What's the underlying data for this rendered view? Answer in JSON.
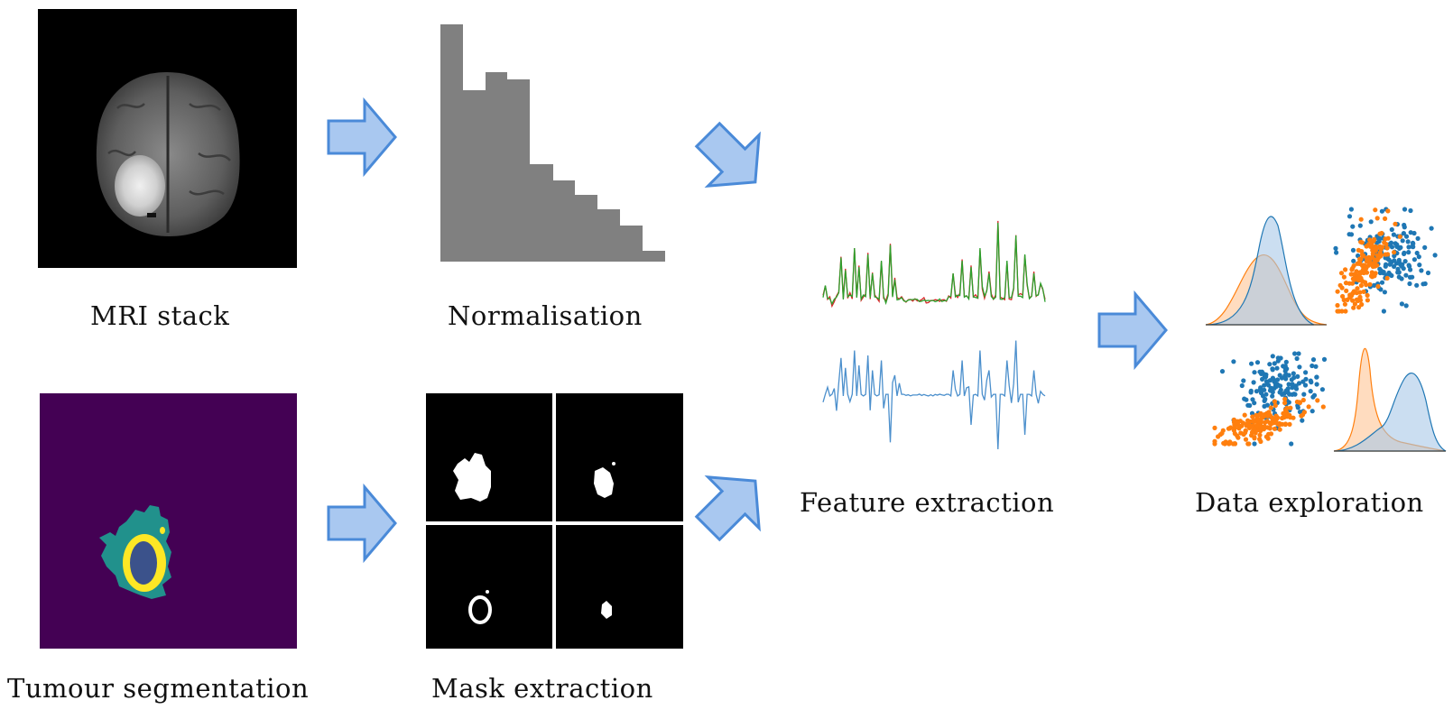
{
  "stages": {
    "mri_stack": "MRI stack",
    "normalisation": "Normalisation",
    "tumour_segmentation": "Tumour segmentation",
    "mask_extraction": "Mask extraction",
    "feature_extraction": "Feature extraction",
    "data_exploration": "Data exploration"
  },
  "colors": {
    "arrow_fill": "#a9c8f0",
    "arrow_stroke": "#4a8ad8",
    "histogram": "#808080",
    "seg_background": "#440154",
    "seg_edema": "#21918c",
    "seg_enhancing": "#fde725",
    "seg_core": "#3b528b",
    "feature_green": "#2ca02c",
    "feature_red": "#d62728",
    "feature_blue": "#4b8fcc",
    "class_blue": "#1f77b4",
    "class_orange": "#ff7f0e"
  }
}
